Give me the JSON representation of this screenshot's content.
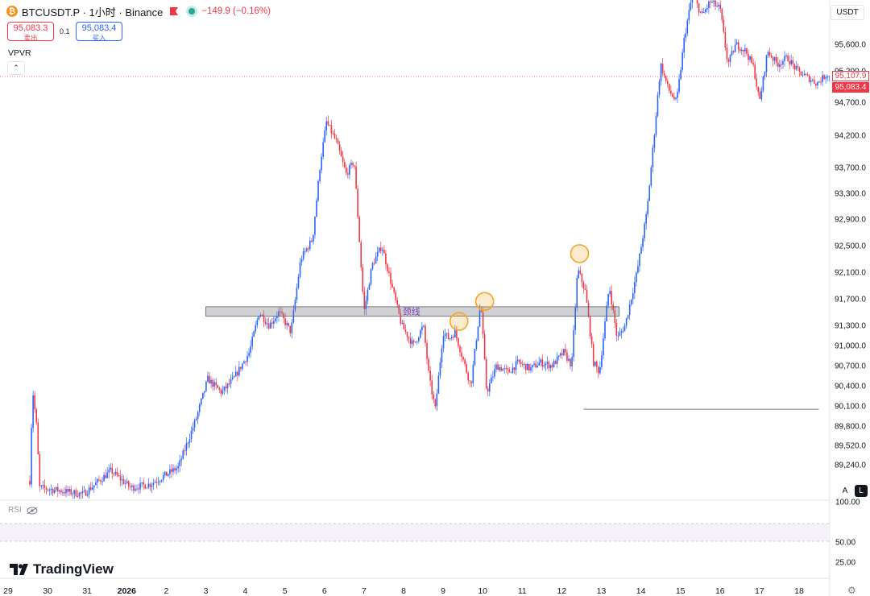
{
  "header": {
    "symbol": "BTCUSDT.P · 1小时 · Binance",
    "change": "−149.9 (−0.16%)",
    "sell_price": "95,083.3",
    "sell_label": "卖出",
    "spread": "0.1",
    "buy_price": "95,083.4",
    "buy_label": "买入",
    "indicator": "VPVR",
    "currency": "USDT",
    "collapse_glyph": "⌃"
  },
  "price_labels": {
    "last": "95,107.9",
    "bid": "95,083.4"
  },
  "colors": {
    "up": "#2962ff",
    "down": "#f23645",
    "neckline_fill": "#b2b5be",
    "circle": "#f5a623"
  },
  "buttons": {
    "auto": "A",
    "log": "L"
  },
  "rsi": {
    "label": "RSI",
    "ticks": [
      "100.00",
      "50.00",
      "25.00"
    ]
  },
  "branding": {
    "name": "TradingView"
  },
  "annotation": {
    "neckline_text": "颈线"
  },
  "chart_data": {
    "type": "candlestick",
    "y_axis_ticks": [
      "95,600.0",
      "95,200.0",
      "94,700.0",
      "94,200.0",
      "93,700.0",
      "93,300.0",
      "92,900.0",
      "92,500.0",
      "92,100.0",
      "91,700.0",
      "91,300.0",
      "91,000.0",
      "90,700.0",
      "90,400.0",
      "90,100.0",
      "89,800.0",
      "89,520.0",
      "89,240.0"
    ],
    "y_tick_values": [
      95600,
      95200,
      94700,
      94200,
      93700,
      93300,
      92900,
      92500,
      92100,
      91700,
      91300,
      91000,
      90700,
      90400,
      90100,
      89800,
      89520,
      89240
    ],
    "x_axis_ticks": [
      "29",
      "30",
      "31",
      "2026",
      "2",
      "3",
      "4",
      "5",
      "6",
      "7",
      "8",
      "9",
      "10",
      "11",
      "12",
      "13",
      "14",
      "15",
      "16",
      "17",
      "18"
    ],
    "x_tick_day_index": [
      0,
      1,
      2,
      3,
      4,
      5,
      6,
      7,
      8,
      9,
      10,
      11,
      12,
      13,
      14,
      15,
      16,
      17,
      18,
      19,
      20
    ],
    "path_points": [
      [
        0.55,
        89000
      ],
      [
        0.62,
        90350
      ],
      [
        0.72,
        89800
      ],
      [
        0.8,
        88900
      ],
      [
        1.9,
        88800
      ],
      [
        2.6,
        89150
      ],
      [
        3.1,
        88900
      ],
      [
        3.6,
        88950
      ],
      [
        4.3,
        89200
      ],
      [
        4.75,
        89900
      ],
      [
        5.05,
        90500
      ],
      [
        5.4,
        90300
      ],
      [
        5.7,
        90500
      ],
      [
        6.1,
        90900
      ],
      [
        6.35,
        91500
      ],
      [
        6.6,
        91300
      ],
      [
        6.85,
        91500
      ],
      [
        7.15,
        91200
      ],
      [
        7.4,
        92300
      ],
      [
        7.7,
        92600
      ],
      [
        7.9,
        93800
      ],
      [
        8.05,
        94400
      ],
      [
        8.3,
        94100
      ],
      [
        8.55,
        93600
      ],
      [
        8.75,
        93800
      ],
      [
        9.0,
        91500
      ],
      [
        9.2,
        92200
      ],
      [
        9.45,
        92500
      ],
      [
        9.7,
        91900
      ],
      [
        9.95,
        91300
      ],
      [
        10.25,
        91000
      ],
      [
        10.5,
        91300
      ],
      [
        10.65,
        90500
      ],
      [
        10.8,
        90050
      ],
      [
        11.0,
        91200
      ],
      [
        11.15,
        91100
      ],
      [
        11.3,
        91200
      ],
      [
        11.45,
        90900
      ],
      [
        11.7,
        90400
      ],
      [
        11.95,
        91650
      ],
      [
        12.1,
        90300
      ],
      [
        12.35,
        90700
      ],
      [
        12.65,
        90600
      ],
      [
        12.9,
        90750
      ],
      [
        13.2,
        90650
      ],
      [
        13.45,
        90750
      ],
      [
        13.75,
        90700
      ],
      [
        14.05,
        90900
      ],
      [
        14.25,
        90700
      ],
      [
        14.4,
        92150
      ],
      [
        14.6,
        91800
      ],
      [
        14.8,
        90750
      ],
      [
        14.95,
        90600
      ],
      [
        15.2,
        91900
      ],
      [
        15.4,
        91100
      ],
      [
        15.6,
        91300
      ],
      [
        15.9,
        92100
      ],
      [
        16.15,
        93000
      ],
      [
        16.35,
        94300
      ],
      [
        16.5,
        95300
      ],
      [
        16.7,
        94900
      ],
      [
        16.9,
        94700
      ],
      [
        17.1,
        95700
      ],
      [
        17.3,
        96300
      ],
      [
        17.55,
        96000
      ],
      [
        17.75,
        96200
      ],
      [
        18.0,
        96100
      ],
      [
        18.2,
        95300
      ],
      [
        18.4,
        95600
      ],
      [
        18.65,
        95500
      ],
      [
        18.85,
        95250
      ],
      [
        19.0,
        94700
      ],
      [
        19.2,
        95500
      ],
      [
        19.45,
        95300
      ],
      [
        19.7,
        95400
      ],
      [
        19.95,
        95200
      ],
      [
        20.2,
        95100
      ],
      [
        20.45,
        95000
      ],
      [
        20.7,
        95150
      ],
      [
        20.8,
        95083.4
      ]
    ],
    "neckline_zone": {
      "from_day": 5.0,
      "to_day": 15.45,
      "y_low": 91440,
      "y_high": 91580
    },
    "support_line": {
      "from_day": 14.55,
      "to_day": 20.5,
      "y": 90050
    },
    "circles": [
      {
        "day": 11.4,
        "y": 91360
      },
      {
        "day": 12.05,
        "y": 91660
      },
      {
        "day": 14.45,
        "y": 92380
      }
    ],
    "current_price": 95107.9
  }
}
